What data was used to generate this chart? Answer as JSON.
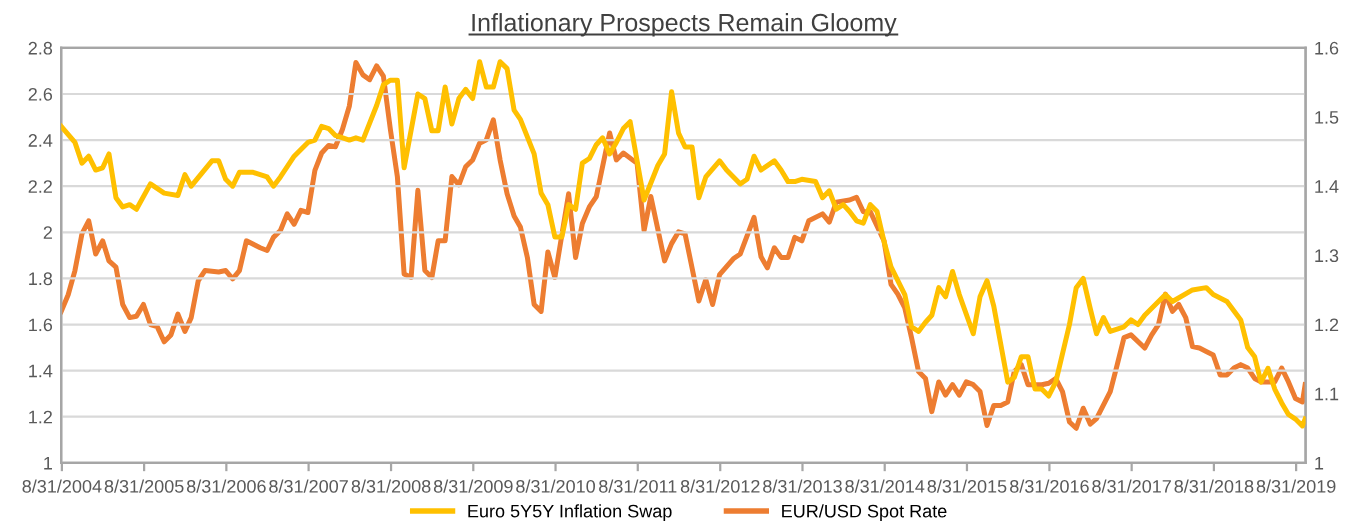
{
  "chart_data": {
    "type": "line",
    "title": "Inflationary Prospects Remain Gloomy",
    "xlim": [
      "2004-08-28",
      "2019-10-12"
    ],
    "xticks": [
      {
        "value": "2004-08-31",
        "label": "8/31/2004"
      },
      {
        "value": "2005-08-31",
        "label": "8/31/2005"
      },
      {
        "value": "2006-08-31",
        "label": "8/31/2006"
      },
      {
        "value": "2007-08-31",
        "label": "8/31/2007"
      },
      {
        "value": "2008-08-31",
        "label": "8/31/2008"
      },
      {
        "value": "2009-08-31",
        "label": "8/31/2009"
      },
      {
        "value": "2010-08-31",
        "label": "8/31/2010"
      },
      {
        "value": "2011-08-31",
        "label": "8/31/2011"
      },
      {
        "value": "2012-08-31",
        "label": "8/31/2012"
      },
      {
        "value": "2013-08-31",
        "label": "8/31/2013"
      },
      {
        "value": "2014-08-31",
        "label": "8/31/2014"
      },
      {
        "value": "2015-08-31",
        "label": "8/31/2015"
      },
      {
        "value": "2016-08-31",
        "label": "8/31/2016"
      },
      {
        "value": "2017-08-31",
        "label": "8/31/2017"
      },
      {
        "value": "2018-08-31",
        "label": "8/31/2018"
      },
      {
        "value": "2019-08-31",
        "label": "8/31/2019"
      }
    ],
    "ylim": [
      1,
      2.8
    ],
    "yticks": [
      1,
      1.2,
      1.4,
      1.6,
      1.8,
      2,
      2.2,
      2.4,
      2.6,
      2.8
    ],
    "y2lim": [
      1,
      1.6
    ],
    "y2ticks": [
      1,
      1.1,
      1.2,
      1.3,
      1.4,
      1.5,
      1.6
    ],
    "grid": "y",
    "legend": "bottom",
    "marker": "none",
    "line_style": "solid",
    "series": [
      {
        "name": "Euro 5Y5Y Inflation Swap",
        "color": "#ffc000",
        "x": [
          "2004-08-28",
          "2004-10-28",
          "2004-11-28",
          "2004-12-28",
          "2005-01-28",
          "2005-02-28",
          "2005-03-28",
          "2005-04-28",
          "2005-05-28",
          "2005-06-28",
          "2005-07-28",
          "2005-09-28",
          "2005-11-28",
          "2006-01-28",
          "2006-02-28",
          "2006-03-28",
          "2006-06-28",
          "2006-07-28",
          "2006-08-28",
          "2006-09-28",
          "2006-10-28",
          "2006-12-28",
          "2007-02-28",
          "2007-03-28",
          "2007-04-28",
          "2007-06-28",
          "2007-08-28",
          "2007-09-28",
          "2007-10-28",
          "2007-11-28",
          "2007-12-28",
          "2008-02-28",
          "2008-03-28",
          "2008-04-28",
          "2008-06-28",
          "2008-07-28",
          "2008-08-28",
          "2008-09-28",
          "2008-10-28",
          "2008-12-28",
          "2009-01-28",
          "2009-02-28",
          "2009-03-28",
          "2009-04-28",
          "2009-05-28",
          "2009-06-28",
          "2009-07-28",
          "2009-08-28",
          "2009-09-28",
          "2009-10-28",
          "2009-11-28",
          "2009-12-28",
          "2010-01-28",
          "2010-02-28",
          "2010-03-28",
          "2010-05-28",
          "2010-06-28",
          "2010-07-28",
          "2010-08-28",
          "2010-09-28",
          "2010-10-28",
          "2010-11-28",
          "2010-12-28",
          "2011-01-28",
          "2011-02-28",
          "2011-03-28",
          "2011-04-28",
          "2011-05-28",
          "2011-06-28",
          "2011-07-28",
          "2011-08-28",
          "2011-09-28",
          "2011-11-28",
          "2011-12-28",
          "2012-01-28",
          "2012-02-28",
          "2012-03-28",
          "2012-04-28",
          "2012-05-28",
          "2012-06-28",
          "2012-08-28",
          "2012-09-28",
          "2012-11-28",
          "2012-12-28",
          "2013-01-28",
          "2013-02-28",
          "2013-04-28",
          "2013-05-28",
          "2013-06-28",
          "2013-07-28",
          "2013-08-28",
          "2013-10-28",
          "2013-11-28",
          "2013-12-28",
          "2014-01-28",
          "2014-02-28",
          "2014-03-28",
          "2014-04-28",
          "2014-05-28",
          "2014-06-28",
          "2014-07-28",
          "2014-08-28",
          "2014-09-28",
          "2014-11-28",
          "2014-12-28",
          "2015-01-28",
          "2015-02-28",
          "2015-03-28",
          "2015-04-28",
          "2015-05-28",
          "2015-06-28",
          "2015-07-28",
          "2015-09-28",
          "2015-10-28",
          "2015-11-28",
          "2015-12-28",
          "2016-02-28",
          "2016-03-28",
          "2016-04-28",
          "2016-05-28",
          "2016-06-28",
          "2016-07-28",
          "2016-08-28",
          "2016-09-28",
          "2016-11-28",
          "2016-12-28",
          "2017-01-28",
          "2017-02-28",
          "2017-03-28",
          "2017-04-28",
          "2017-05-28",
          "2017-07-28",
          "2017-08-28",
          "2017-09-28",
          "2017-10-28",
          "2017-12-28",
          "2018-01-28",
          "2018-02-28",
          "2018-05-28",
          "2018-07-28",
          "2018-08-28",
          "2018-10-28",
          "2018-12-28",
          "2019-01-28",
          "2019-02-28",
          "2019-03-28",
          "2019-04-28",
          "2019-05-28",
          "2019-06-28",
          "2019-07-28",
          "2019-08-28",
          "2019-09-28",
          "2019-10-10"
        ],
        "values": [
          2.46,
          2.39,
          2.3,
          2.33,
          2.27,
          2.28,
          2.34,
          2.15,
          2.11,
          2.12,
          2.1,
          2.21,
          2.17,
          2.16,
          2.25,
          2.2,
          2.31,
          2.31,
          2.23,
          2.2,
          2.26,
          2.26,
          2.24,
          2.2,
          2.24,
          2.33,
          2.39,
          2.4,
          2.46,
          2.45,
          2.42,
          2.4,
          2.41,
          2.4,
          2.55,
          2.64,
          2.66,
          2.66,
          2.28,
          2.6,
          2.58,
          2.44,
          2.44,
          2.63,
          2.47,
          2.58,
          2.62,
          2.58,
          2.74,
          2.63,
          2.63,
          2.74,
          2.71,
          2.53,
          2.49,
          2.34,
          2.17,
          2.12,
          1.98,
          1.98,
          2.12,
          2.1,
          2.3,
          2.32,
          2.38,
          2.41,
          2.34,
          2.39,
          2.45,
          2.48,
          2.31,
          2.14,
          2.29,
          2.34,
          2.61,
          2.43,
          2.37,
          2.37,
          2.15,
          2.24,
          2.31,
          2.27,
          2.21,
          2.23,
          2.33,
          2.27,
          2.31,
          2.27,
          2.22,
          2.22,
          2.23,
          2.22,
          2.15,
          2.18,
          2.1,
          2.12,
          2.09,
          2.05,
          2.04,
          2.12,
          2.09,
          1.96,
          1.85,
          1.73,
          1.59,
          1.57,
          1.61,
          1.64,
          1.76,
          1.72,
          1.83,
          1.73,
          1.56,
          1.72,
          1.79,
          1.68,
          1.35,
          1.37,
          1.46,
          1.46,
          1.32,
          1.32,
          1.29,
          1.35,
          1.6,
          1.76,
          1.8,
          1.67,
          1.56,
          1.63,
          1.57,
          1.59,
          1.62,
          1.6,
          1.64,
          1.7,
          1.73,
          1.7,
          1.75,
          1.76,
          1.73,
          1.7,
          1.62,
          1.5,
          1.46,
          1.35,
          1.41,
          1.32,
          1.26,
          1.21,
          1.19,
          1.16,
          1.19
        ]
      },
      {
        "name": "EUR/USD Spot Rate",
        "color": "#ed7d31",
        "axis": "y2",
        "x": [
          "2004-08-28",
          "2004-09-28",
          "2004-10-28",
          "2004-11-28",
          "2004-12-28",
          "2005-01-28",
          "2005-02-28",
          "2005-03-28",
          "2005-04-28",
          "2005-05-28",
          "2005-06-28",
          "2005-07-28",
          "2005-08-28",
          "2005-09-28",
          "2005-10-28",
          "2005-11-28",
          "2005-12-28",
          "2006-01-28",
          "2006-02-28",
          "2006-03-28",
          "2006-04-28",
          "2006-05-28",
          "2006-07-28",
          "2006-08-28",
          "2006-09-28",
          "2006-10-28",
          "2006-11-28",
          "2007-01-28",
          "2007-02-28",
          "2007-03-28",
          "2007-04-28",
          "2007-05-28",
          "2007-06-28",
          "2007-07-28",
          "2007-08-28",
          "2007-09-28",
          "2007-10-28",
          "2007-11-28",
          "2007-12-28",
          "2008-01-28",
          "2008-02-28",
          "2008-03-28",
          "2008-04-28",
          "2008-05-28",
          "2008-06-28",
          "2008-07-28",
          "2008-08-28",
          "2008-09-28",
          "2008-10-28",
          "2008-11-28",
          "2008-12-28",
          "2009-01-28",
          "2009-02-28",
          "2009-03-28",
          "2009-04-28",
          "2009-05-28",
          "2009-06-28",
          "2009-07-28",
          "2009-08-28",
          "2009-09-28",
          "2009-10-28",
          "2009-11-28",
          "2009-12-28",
          "2010-01-28",
          "2010-02-28",
          "2010-03-28",
          "2010-04-28",
          "2010-05-28",
          "2010-06-28",
          "2010-07-28",
          "2010-08-28",
          "2010-10-28",
          "2010-11-28",
          "2010-12-28",
          "2011-01-28",
          "2011-02-28",
          "2011-04-28",
          "2011-05-28",
          "2011-06-28",
          "2011-08-28",
          "2011-09-28",
          "2011-10-28",
          "2011-12-28",
          "2012-01-28",
          "2012-02-28",
          "2012-03-28",
          "2012-05-28",
          "2012-06-28",
          "2012-07-28",
          "2012-08-28",
          "2012-10-28",
          "2012-11-28",
          "2013-01-28",
          "2013-02-28",
          "2013-03-28",
          "2013-04-28",
          "2013-05-28",
          "2013-06-28",
          "2013-07-28",
          "2013-08-28",
          "2013-09-28",
          "2013-11-28",
          "2013-12-28",
          "2014-01-28",
          "2014-03-28",
          "2014-04-28",
          "2014-05-28",
          "2014-06-28",
          "2014-08-28",
          "2014-09-28",
          "2014-10-28",
          "2014-11-28",
          "2014-12-28",
          "2015-01-28",
          "2015-02-28",
          "2015-03-28",
          "2015-04-28",
          "2015-05-28",
          "2015-06-28",
          "2015-07-28",
          "2015-08-28",
          "2015-09-28",
          "2015-10-28",
          "2015-11-28",
          "2015-12-28",
          "2016-01-28",
          "2016-02-28",
          "2016-03-28",
          "2016-04-28",
          "2016-05-28",
          "2016-07-28",
          "2016-08-28",
          "2016-09-28",
          "2016-10-28",
          "2016-11-28",
          "2016-12-28",
          "2017-01-28",
          "2017-02-28",
          "2017-03-28",
          "2017-05-28",
          "2017-06-28",
          "2017-07-28",
          "2017-08-28",
          "2017-10-28",
          "2017-11-28",
          "2017-12-28",
          "2018-01-28",
          "2018-02-28",
          "2018-03-28",
          "2018-04-28",
          "2018-05-28",
          "2018-06-28",
          "2018-07-28",
          "2018-08-28",
          "2018-09-28",
          "2018-10-28",
          "2018-11-28",
          "2018-12-28",
          "2019-01-28",
          "2019-02-28",
          "2019-03-28",
          "2019-05-28",
          "2019-06-28",
          "2019-07-28",
          "2019-08-28",
          "2019-09-28",
          "2019-10-10"
        ],
        "values": [
          1.219,
          1.243,
          1.278,
          1.331,
          1.35,
          1.302,
          1.321,
          1.292,
          1.283,
          1.229,
          1.21,
          1.212,
          1.229,
          1.2,
          1.197,
          1.175,
          1.185,
          1.215,
          1.19,
          1.21,
          1.263,
          1.278,
          1.276,
          1.278,
          1.266,
          1.278,
          1.321,
          1.311,
          1.307,
          1.326,
          1.336,
          1.36,
          1.345,
          1.365,
          1.362,
          1.423,
          1.448,
          1.459,
          1.457,
          1.482,
          1.516,
          1.579,
          1.561,
          1.554,
          1.574,
          1.559,
          1.482,
          1.414,
          1.273,
          1.268,
          1.394,
          1.278,
          1.268,
          1.321,
          1.321,
          1.414,
          1.402,
          1.428,
          1.438,
          1.462,
          1.467,
          1.496,
          1.438,
          1.389,
          1.357,
          1.341,
          1.297,
          1.229,
          1.219,
          1.305,
          1.268,
          1.389,
          1.297,
          1.346,
          1.37,
          1.385,
          1.477,
          1.438,
          1.448,
          1.433,
          1.336,
          1.385,
          1.292,
          1.317,
          1.334,
          1.331,
          1.234,
          1.265,
          1.229,
          1.272,
          1.295,
          1.302,
          1.355,
          1.298,
          1.282,
          1.311,
          1.297,
          1.297,
          1.326,
          1.321,
          1.35,
          1.36,
          1.348,
          1.377,
          1.38,
          1.384,
          1.363,
          1.363,
          1.321,
          1.258,
          1.244,
          1.224,
          1.181,
          1.132,
          1.122,
          1.074,
          1.117,
          1.098,
          1.113,
          1.098,
          1.117,
          1.113,
          1.103,
          1.054,
          1.083,
          1.083,
          1.088,
          1.132,
          1.142,
          1.113,
          1.113,
          1.115,
          1.122,
          1.103,
          1.059,
          1.05,
          1.079,
          1.056,
          1.064,
          1.103,
          1.142,
          1.181,
          1.185,
          1.166,
          1.185,
          1.2,
          1.244,
          1.219,
          1.229,
          1.21,
          1.168,
          1.166,
          1.161,
          1.156,
          1.127,
          1.127,
          1.137,
          1.142,
          1.137,
          1.122,
          1.117,
          1.117,
          1.137,
          1.117,
          1.093,
          1.088,
          1.113
        ]
      }
    ]
  }
}
